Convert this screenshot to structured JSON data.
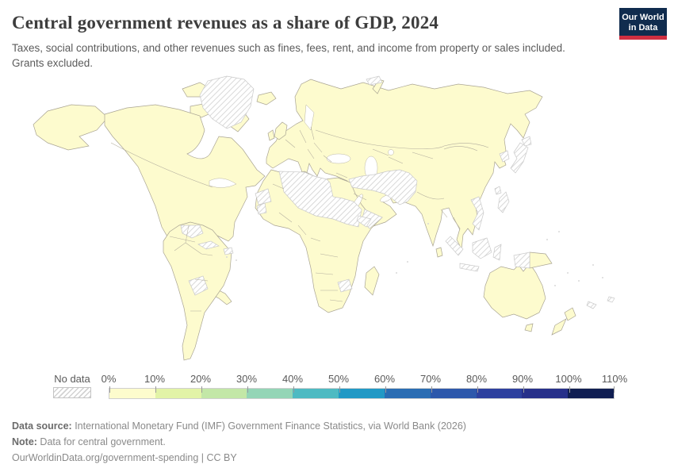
{
  "header": {
    "title": "Central government revenues as a share of GDP, 2024",
    "subtitle": "Taxes, social contributions, and other revenues such as fines, fees, rent, and income from property or sales included. Grants excluded.",
    "logo": {
      "line1": "Our World",
      "line2": "in Data"
    }
  },
  "legend": {
    "no_data_label": "No data",
    "tick_labels": [
      "0%",
      "10%",
      "20%",
      "30%",
      "40%",
      "50%",
      "60%",
      "70%",
      "80%",
      "90%",
      "100%",
      "110%"
    ],
    "bin_colors": [
      "#fdfccd",
      "#e2f3a7",
      "#c3e7a7",
      "#94d5b6",
      "#4ebac2",
      "#2199c5",
      "#2a6db3",
      "#2d58ab",
      "#2d409e",
      "#27308a",
      "#101e52"
    ]
  },
  "map": {
    "colors": {
      "land": "#fdfbce",
      "land-border": "#a9a493",
      "nodata-border": "#c9c9c9",
      "hatch-line": "#d2d2d2",
      "border-line": "#b3ae9e"
    }
  },
  "chart_data": {
    "type": "heatmap",
    "variant": "world-choropleth",
    "title": "Central government revenues as a share of GDP, 2024",
    "unit": "% of GDP",
    "year": 2024,
    "legend_position": "bottom",
    "colorscale": {
      "bin_edges_percent": [
        0,
        10,
        20,
        30,
        40,
        50,
        60,
        70,
        80,
        90,
        100,
        110
      ],
      "bin_colors": [
        "#fdfccd",
        "#e2f3a7",
        "#c3e7a7",
        "#94d5b6",
        "#4ebac2",
        "#2199c5",
        "#2a6db3",
        "#2d58ab",
        "#2d409e",
        "#27308a",
        "#101e52"
      ],
      "no_data": {
        "label": "No data",
        "style": "diagonal-hatch"
      }
    },
    "map_reading": {
      "dominant_bin": "0-10%",
      "dominant_fill": "#fdfbce",
      "description": "Nearly all countries with data are shaded in the palest 0–10% bin; no country on the map shows a visibly darker bin.",
      "no_data_regions_visible": [
        "Greenland",
        "Svalbard",
        "Cuba",
        "Hispaniola",
        "Venezuela",
        "Bolivia",
        "Western Sahara",
        "Guinea area",
        "Algeria",
        "Libya",
        "Niger",
        "Chad",
        "Sudan",
        "South Sudan",
        "Eritrea",
        "Somalia",
        "Zimbabwe",
        "Syria",
        "Iraq",
        "Iran",
        "Turkmenistan",
        "Afghanistan",
        "Pakistan",
        "Yemen",
        "North Korea",
        "Japan",
        "Taiwan",
        "Vietnam",
        "Laos",
        "Philippines",
        "Indonesia",
        "New Caledonia",
        "Fiji"
      ]
    }
  },
  "footer": {
    "source_label": "Data source:",
    "source_text": " International Monetary Fund (IMF) Government Finance Statistics, via World Bank (2026)",
    "note_label": "Note:",
    "note_text": " Data for central government.",
    "url_line": "OurWorldinData.org/government-spending | CC BY"
  }
}
